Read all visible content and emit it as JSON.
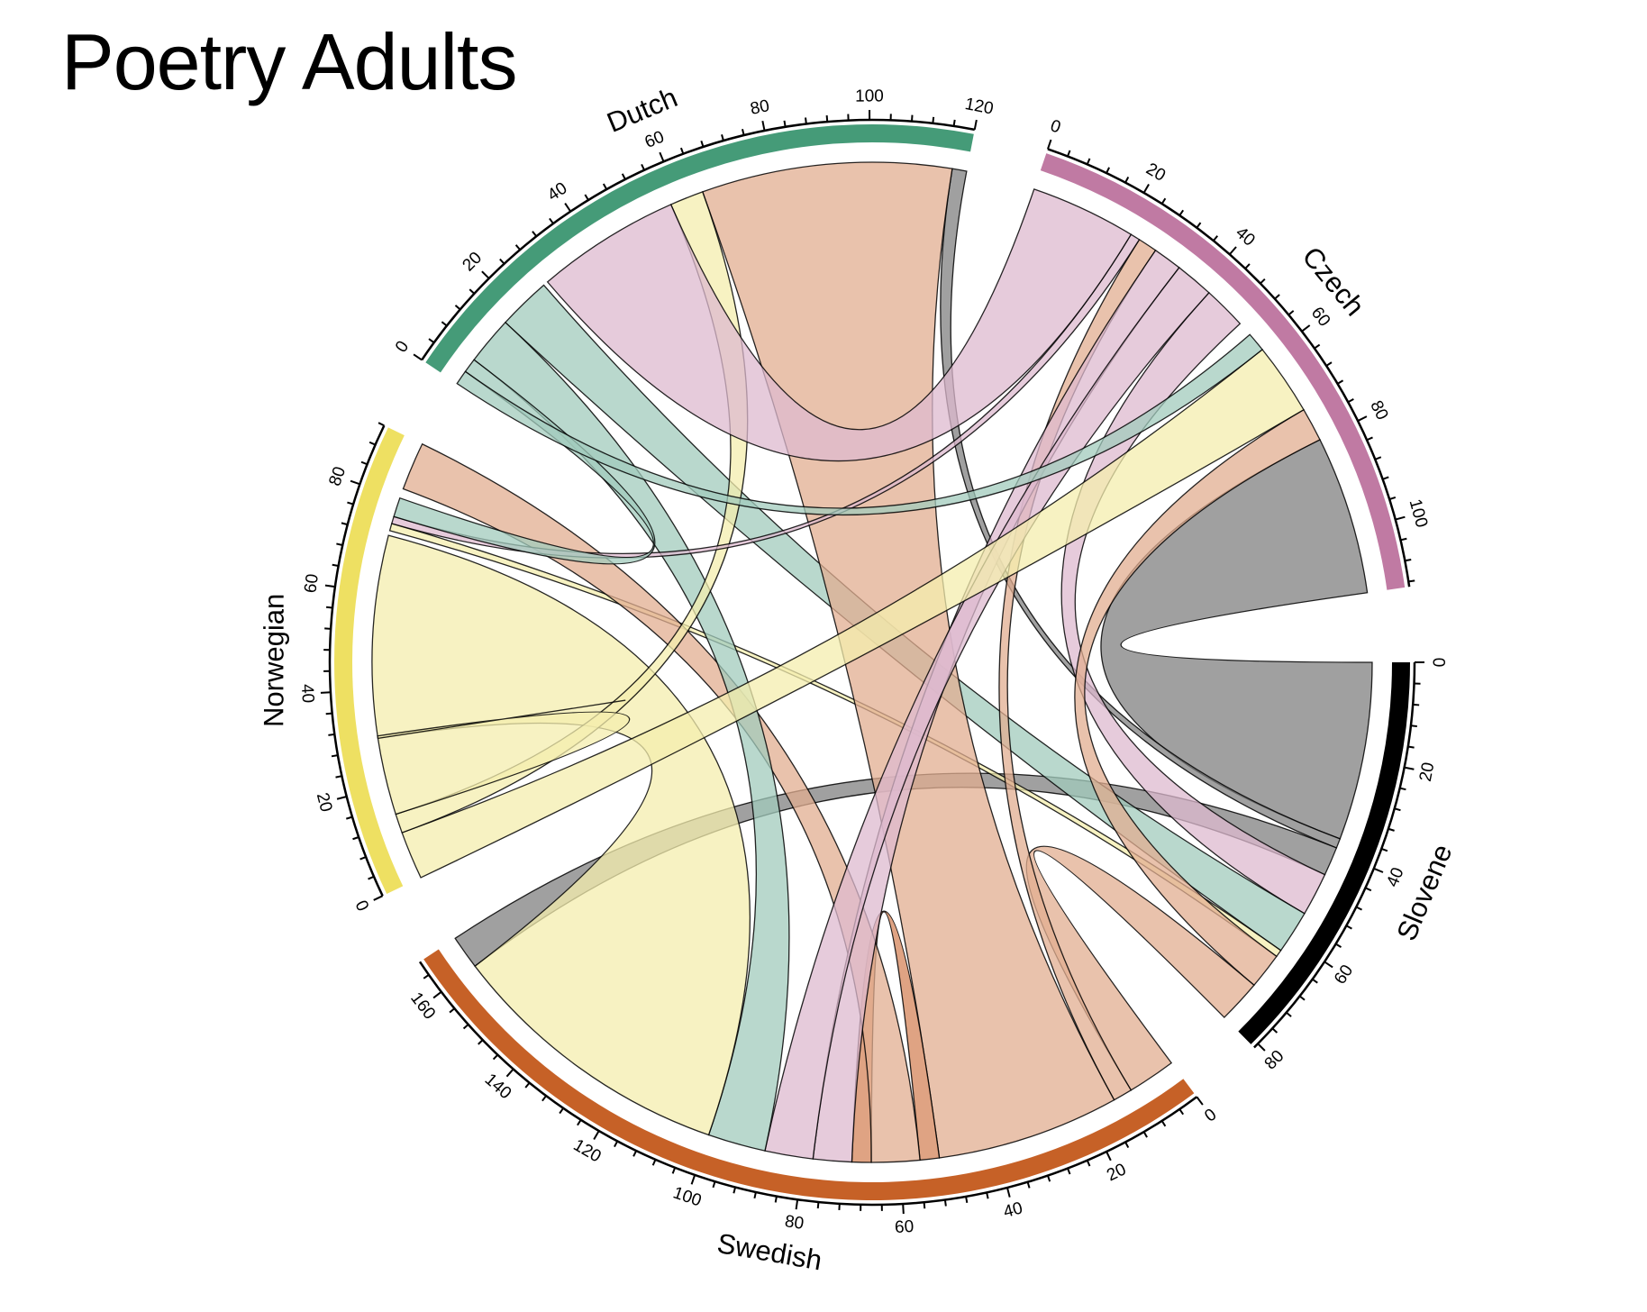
{
  "title": "Poetry Adults",
  "chart_data": {
    "type": "chord",
    "title": "Poetry Adults",
    "gap_degrees": 8,
    "start_angle_degrees": 0,
    "direction": "clockwise",
    "tick_minor_step": 4,
    "tick_major_step": 20,
    "sectors": [
      {
        "name": "Slovene",
        "total": 81,
        "color": "#000000"
      },
      {
        "name": "Swedish",
        "total": 167,
        "color": "#C66127"
      },
      {
        "name": "Norwegian",
        "total": 92,
        "color": "#EEE062"
      },
      {
        "name": "Dutch",
        "total": 120,
        "color": "#459B78"
      },
      {
        "name": "Czech",
        "total": 113,
        "color": "#C07AA3"
      }
    ],
    "chords": [
      {
        "from": "Slovene",
        "from_range": [
          0,
          37
        ],
        "to": "Czech",
        "to_range": [
          80,
          113
        ],
        "color": "#808080"
      },
      {
        "from": "Slovene",
        "from_range": [
          37,
          39
        ],
        "to": "Dutch",
        "to_range": [
          117,
          120
        ],
        "color": "#808080"
      },
      {
        "from": "Slovene",
        "from_range": [
          39,
          45
        ],
        "to": "Swedish",
        "to_range": [
          160,
          167
        ],
        "color": "#808080"
      },
      {
        "from": "Slovene",
        "from_range": [
          45,
          54
        ],
        "to": "Czech",
        "to_range": [
          42,
          51
        ],
        "color": "#DDB9CF"
      },
      {
        "from": "Slovene",
        "from_range": [
          54,
          63
        ],
        "to": "Dutch",
        "to_range": [
          16,
          27
        ],
        "color": "#A1CBBC"
      },
      {
        "from": "Slovene",
        "from_range": [
          63,
          64.5
        ],
        "to": "Norwegian",
        "to_range": [
          73,
          74.5
        ],
        "color": "#F4EEAE"
      },
      {
        "from": "Slovene",
        "from_range": [
          64.5,
          72
        ],
        "to": "Czech",
        "to_range": [
          73,
          80
        ],
        "color": "#E2AE90"
      },
      {
        "from": "Slovene",
        "from_range": [
          72,
          81
        ],
        "to": "Swedish",
        "to_range": [
          0,
          10
        ],
        "color": "#E2AE90"
      },
      {
        "from": "Swedish",
        "from_range": [
          10,
          14
        ],
        "to": "Czech",
        "to_range": [
          24,
          28
        ],
        "color": "#E2AE90"
      },
      {
        "from": "Swedish",
        "from_range": [
          14,
          52
        ],
        "to": "Dutch",
        "to_range": [
          65,
          117
        ],
        "color": "#E2AE90"
      },
      {
        "from": "Swedish",
        "from_range": [
          52,
          56
        ],
        "to": "Swedish",
        "to_range": [
          66,
          70
        ],
        "color": "#D4845A"
      },
      {
        "from": "Swedish",
        "from_range": [
          56,
          66
        ],
        "to": "Norwegian",
        "to_range": [
          82,
          92
        ],
        "color": "#E2AE90"
      },
      {
        "from": "Swedish",
        "from_range": [
          70,
          78
        ],
        "to": "Czech",
        "to_range": [
          28,
          34
        ],
        "color": "#DDB9CF"
      },
      {
        "from": "Swedish",
        "from_range": [
          78,
          88
        ],
        "to": "Czech",
        "to_range": [
          34,
          42
        ],
        "color": "#DDB9CF"
      },
      {
        "from": "Swedish",
        "from_range": [
          88,
          100
        ],
        "to": "Dutch",
        "to_range": [
          6,
          16
        ],
        "color": "#A1CBBC"
      },
      {
        "from": "Swedish",
        "from_range": [
          100,
          160
        ],
        "to": "Norwegian",
        "to_range": [
          30,
          72
        ],
        "color": "#F4EEAE"
      },
      {
        "from": "Norwegian",
        "from_range": [
          0,
          10
        ],
        "to": "Czech",
        "to_range": [
          58,
          73
        ],
        "color": "#F4EEAE"
      },
      {
        "from": "Norwegian",
        "from_range": [
          10,
          14
        ],
        "to": "Dutch",
        "to_range": [
          58,
          65
        ],
        "color": "#F4EEAE"
      },
      {
        "from": "Norwegian",
        "from_range": [
          14,
          30
        ],
        "to": "Norwegian",
        "to_range": [
          30,
          30.5
        ],
        "color": "#F4EEAE"
      },
      {
        "from": "Norwegian",
        "from_range": [
          74.5,
          76
        ],
        "to": "Czech",
        "to_range": [
          22,
          24
        ],
        "color": "#DDB9CF"
      },
      {
        "from": "Norwegian",
        "from_range": [
          76,
          80
        ],
        "to": "Dutch",
        "to_range": [
          3,
          6
        ],
        "color": "#A1CBBC"
      },
      {
        "from": "Dutch",
        "from_range": [
          0,
          3
        ],
        "to": "Czech",
        "to_range": [
          54,
          58
        ],
        "color": "#A1CBBC"
      },
      {
        "from": "Dutch",
        "from_range": [
          28,
          58
        ],
        "to": "Czech",
        "to_range": [
          0,
          22
        ],
        "color": "#DDB9CF"
      }
    ]
  }
}
